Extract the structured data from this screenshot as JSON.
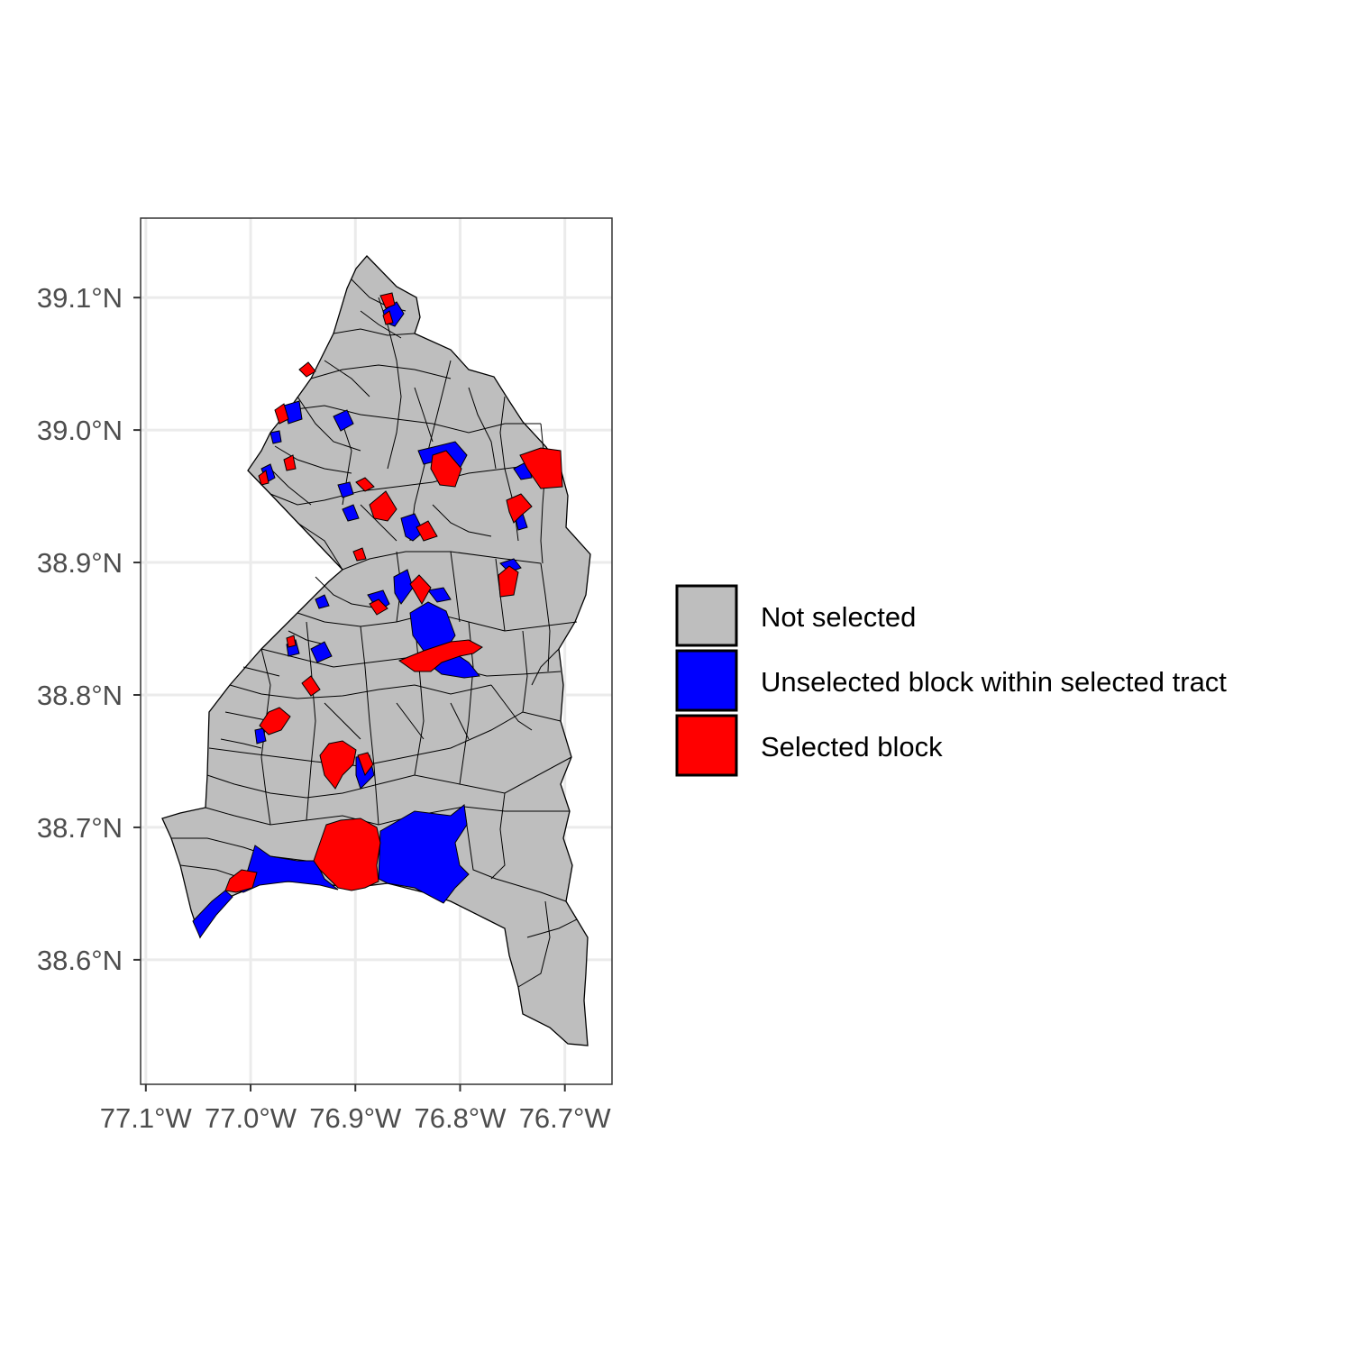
{
  "map": {
    "x_axis": {
      "ticks": [
        {
          "value": -77.1,
          "label": "77.1°W"
        },
        {
          "value": -77.0,
          "label": "77.0°W"
        },
        {
          "value": -76.9,
          "label": "76.9°W"
        },
        {
          "value": -76.8,
          "label": "76.8°W"
        },
        {
          "value": -76.7,
          "label": "76.7°W"
        }
      ],
      "range": [
        -77.105,
        -76.655
      ]
    },
    "y_axis": {
      "ticks": [
        {
          "value": 38.6,
          "label": "38.6°N"
        },
        {
          "value": 38.7,
          "label": "38.7°N"
        },
        {
          "value": 38.8,
          "label": "38.8°N"
        },
        {
          "value": 38.9,
          "label": "38.9°N"
        },
        {
          "value": 39.0,
          "label": "39.0°N"
        },
        {
          "value": 39.1,
          "label": "39.1°N"
        }
      ],
      "range": [
        38.506,
        39.16
      ]
    },
    "grid": true,
    "legend": {
      "placement": "right",
      "items": [
        {
          "label": "Not selected",
          "color": "#bebebe"
        },
        {
          "label": "Unselected block within selected tract",
          "color": "#0000ff"
        },
        {
          "label": "Selected block",
          "color": "#ff0000"
        }
      ]
    },
    "colors": {
      "not_selected": "#bebebe",
      "unselected_in_tract": "#0000ff",
      "selected": "#ff0000",
      "border": "#000000",
      "gridline": "#ebebeb",
      "panel_border": "#333333"
    }
  }
}
